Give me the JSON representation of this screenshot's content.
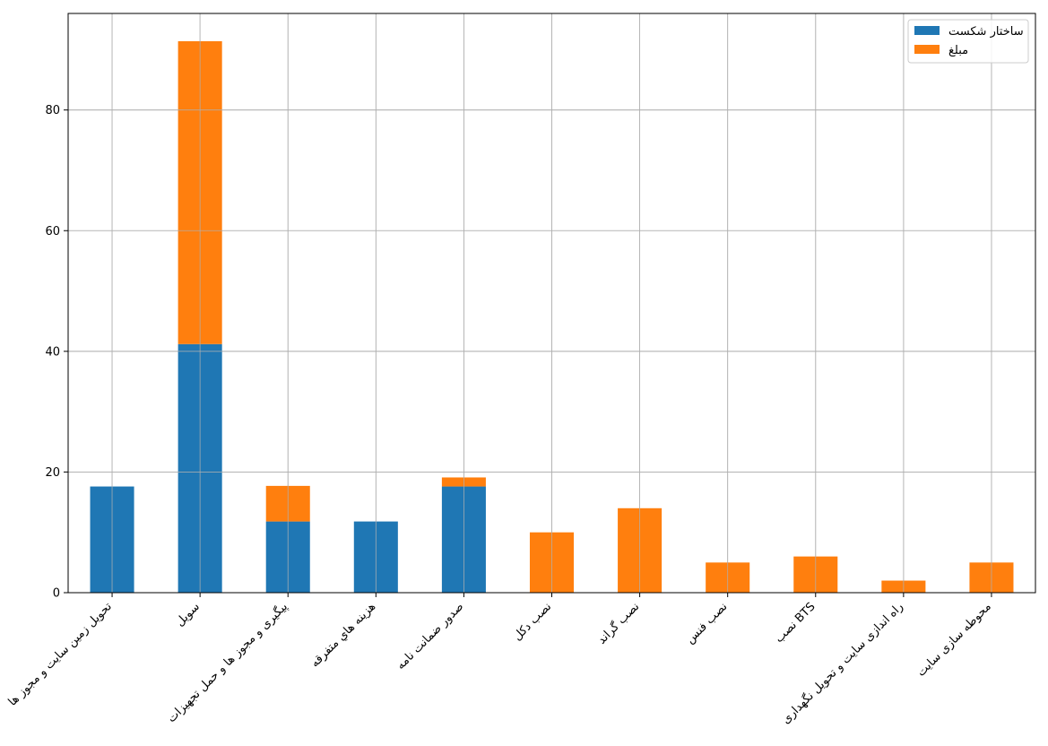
{
  "chart_data": {
    "type": "bar",
    "stacked": true,
    "categories": [
      "تحویل زمین سایت و مجوز ها",
      "سویل",
      "پیگیری و مجوز ها و حمل تجهیزات",
      "هزینه هاي متفرقه",
      "صدور ضمانت نامه",
      "نصب دکل",
      "نصب گراند",
      "نصب فنس",
      "نصب BTS",
      "راه اندازی سایت و تحویل نگهداری",
      "محوطه سازی سایت"
    ],
    "series": [
      {
        "name": "ساختار شکست",
        "color": "#1f77b4",
        "values": [
          17.6,
          41.2,
          11.8,
          11.8,
          17.6,
          0,
          0,
          0,
          0,
          0,
          0
        ]
      },
      {
        "name": "مبلغ",
        "color": "#ff7f0e",
        "values": [
          0,
          50.2,
          5.9,
          0,
          1.5,
          10,
          14,
          5,
          6,
          2,
          5
        ]
      }
    ],
    "yticks": [
      0,
      20,
      40,
      60,
      80
    ],
    "ylim": [
      0,
      96
    ],
    "grid": true,
    "legend_position": "top-right",
    "title": "",
    "xlabel": "",
    "ylabel": ""
  }
}
